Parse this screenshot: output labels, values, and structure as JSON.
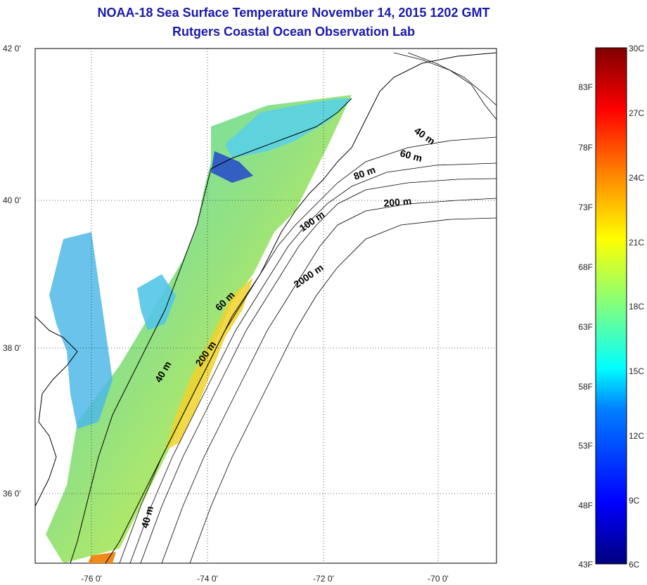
{
  "title": {
    "line1": "NOAA-18 Sea Surface Temperature November 14, 2015 1202 GMT",
    "line2": "Rutgers Coastal Ocean Observation Lab"
  },
  "map": {
    "lat_range": [
      35,
      42
    ],
    "lon_range": [
      -77,
      -69
    ],
    "lat_ticks": [
      "42 0'",
      "40 0'",
      "38 0'",
      "36 0'"
    ],
    "lon_ticks": [
      "-76 0'",
      "-74 0'",
      "-72 0'",
      "-70 0'"
    ],
    "contour_labels": [
      "40 m",
      "60 m",
      "80 m",
      "200 m",
      "100 m",
      "2000 m",
      "60 m",
      "200 m",
      "40 m",
      "40 m"
    ]
  },
  "colorbar": {
    "fahrenheit_labels": [
      "83F",
      "78F",
      "73F",
      "68F",
      "63F",
      "58F",
      "53F",
      "48F",
      "43F"
    ],
    "celsius_labels": [
      "30C",
      "27C",
      "24C",
      "21C",
      "18C",
      "15C",
      "12C",
      "9C",
      "6C"
    ],
    "colors": [
      "#000080",
      "#0000ff",
      "#0080ff",
      "#00ffff",
      "#80ff80",
      "#ffff00",
      "#ff8000",
      "#ff0000",
      "#800000"
    ]
  }
}
